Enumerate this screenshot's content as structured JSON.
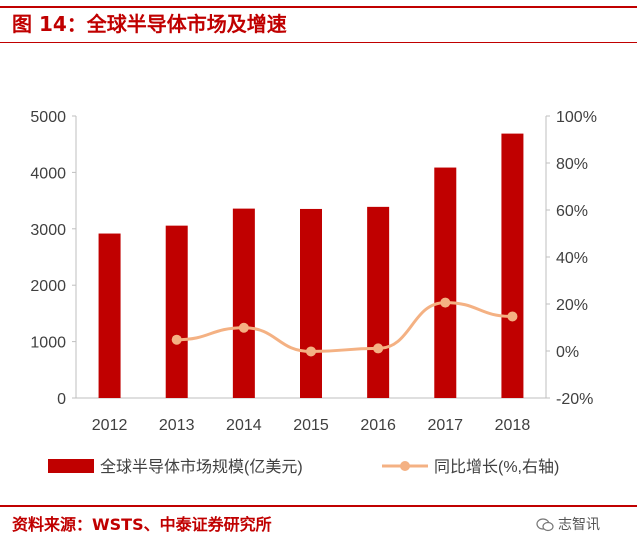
{
  "figure": {
    "title": "图 14：全球半导体市场及增速",
    "source": "资料来源：WSTS、中泰证券研究所",
    "watermark": "志智讯"
  },
  "colors": {
    "accent": "#c00000",
    "bar": "#c00000",
    "line": "#f4b183",
    "axis": "#bfbfbf",
    "text": "#404040"
  },
  "chart_data": {
    "type": "bar",
    "categories": [
      "2012",
      "2013",
      "2014",
      "2015",
      "2016",
      "2017",
      "2018"
    ],
    "series": [
      {
        "name": "全球半导体市场规模(亿美元)",
        "type": "bar",
        "axis": "left",
        "values": [
          2916,
          3056,
          3358,
          3352,
          3389,
          4086,
          4688
        ]
      },
      {
        "name": "同比增长(%,右轴)",
        "type": "line",
        "axis": "right",
        "values": [
          null,
          4.8,
          9.9,
          -0.2,
          1.1,
          20.6,
          14.7
        ]
      }
    ],
    "y_left": {
      "min": 0,
      "max": 5000,
      "ticks": [
        "0",
        "1000",
        "2000",
        "3000",
        "4000",
        "5000"
      ]
    },
    "y_right": {
      "min": -20,
      "max": 100,
      "ticks": [
        "-20%",
        "0%",
        "20%",
        "40%",
        "60%",
        "80%",
        "100%"
      ]
    },
    "grid": false,
    "legend_position": "bottom"
  }
}
